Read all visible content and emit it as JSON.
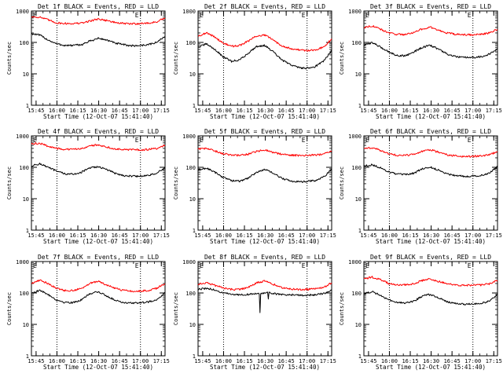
{
  "colors": {
    "events": "#000000",
    "lld": "#ff0000",
    "axes": "#000000",
    "background": "#ffffff"
  },
  "common": {
    "xlabel": "Start Time (12-Oct-07 15:41:40)",
    "ylabel": "Counts/sec",
    "x_tick_labels": [
      "15:45",
      "16:00",
      "16:15",
      "16:30",
      "16:45",
      "17:00",
      "17:15"
    ],
    "y_tick_labels": [
      "1",
      "10",
      "100",
      "1000"
    ],
    "marker_letters": [
      "E",
      "E"
    ]
  },
  "chart_data": [
    {
      "type": "line",
      "title": "Det 1f BLACK = Events, RED = LLD",
      "x_unit": "minutes after 15:41:40",
      "xlim": [
        0,
        96
      ],
      "ylim": [
        1,
        1000
      ],
      "yscale": "log",
      "x_ticks": [
        3.33,
        18.33,
        33.33,
        48.33,
        63.33,
        78.33,
        93.33
      ],
      "marker_lines_x": [
        18.33,
        78.33
      ],
      "series": [
        {
          "name": "Events",
          "color": "#000000",
          "x": [
            0,
            6,
            12,
            18,
            24,
            30,
            36,
            42,
            48,
            54,
            60,
            66,
            72,
            78,
            84,
            90,
            96
          ],
          "y": [
            190,
            170,
            120,
            90,
            80,
            80,
            85,
            110,
            135,
            120,
            95,
            85,
            78,
            80,
            85,
            100,
            160
          ]
        },
        {
          "name": "LLD",
          "color": "#ff0000",
          "x": [
            0,
            6,
            12,
            18,
            24,
            30,
            36,
            42,
            48,
            54,
            60,
            66,
            72,
            78,
            84,
            90,
            96
          ],
          "y": [
            650,
            640,
            520,
            420,
            400,
            400,
            410,
            480,
            560,
            500,
            430,
            400,
            390,
            400,
            410,
            450,
            600
          ]
        }
      ]
    },
    {
      "type": "line",
      "title": "Det 2f BLACK = Events, RED = LLD",
      "x_unit": "minutes after 15:41:40",
      "xlim": [
        0,
        96
      ],
      "ylim": [
        1,
        1000
      ],
      "yscale": "log",
      "x_ticks": [
        3.33,
        18.33,
        33.33,
        48.33,
        63.33,
        78.33,
        93.33
      ],
      "marker_lines_x": [
        18.33,
        78.33
      ],
      "series": [
        {
          "name": "Events",
          "color": "#000000",
          "x": [
            0,
            6,
            12,
            18,
            24,
            30,
            36,
            42,
            48,
            54,
            60,
            66,
            72,
            78,
            84,
            90,
            96
          ],
          "y": [
            70,
            90,
            60,
            35,
            25,
            28,
            45,
            75,
            80,
            50,
            28,
            20,
            16,
            15,
            17,
            25,
            55
          ]
        },
        {
          "name": "LLD",
          "color": "#ff0000",
          "x": [
            0,
            6,
            12,
            18,
            24,
            30,
            36,
            42,
            48,
            54,
            60,
            66,
            72,
            78,
            84,
            90,
            96
          ],
          "y": [
            160,
            200,
            150,
            95,
            75,
            80,
            110,
            160,
            170,
            120,
            80,
            65,
            58,
            55,
            58,
            70,
            130
          ]
        }
      ]
    },
    {
      "type": "line",
      "title": "Det 3f BLACK = Events, RED = LLD",
      "x_unit": "minutes after 15:41:40",
      "xlim": [
        0,
        96
      ],
      "ylim": [
        1,
        1000
      ],
      "yscale": "log",
      "x_ticks": [
        3.33,
        18.33,
        33.33,
        48.33,
        63.33,
        78.33,
        93.33
      ],
      "marker_lines_x": [
        18.33,
        78.33
      ],
      "series": [
        {
          "name": "Events",
          "color": "#000000",
          "x": [
            0,
            6,
            12,
            18,
            24,
            30,
            36,
            42,
            48,
            54,
            60,
            66,
            72,
            78,
            84,
            90,
            96
          ],
          "y": [
            80,
            100,
            70,
            50,
            38,
            38,
            50,
            70,
            80,
            60,
            42,
            35,
            33,
            33,
            35,
            42,
            60
          ]
        },
        {
          "name": "LLD",
          "color": "#ff0000",
          "x": [
            0,
            6,
            12,
            18,
            24,
            30,
            36,
            42,
            48,
            54,
            60,
            66,
            72,
            78,
            84,
            90,
            96
          ],
          "y": [
            300,
            340,
            260,
            200,
            180,
            180,
            210,
            270,
            300,
            240,
            200,
            180,
            175,
            175,
            180,
            200,
            260
          ]
        }
      ]
    },
    {
      "type": "line",
      "title": "Det 4f BLACK = Events, RED = LLD",
      "x_unit": "minutes after 15:41:40",
      "xlim": [
        0,
        96
      ],
      "ylim": [
        1,
        1000
      ],
      "yscale": "log",
      "x_ticks": [
        3.33,
        18.33,
        33.33,
        48.33,
        63.33,
        78.33,
        93.33
      ],
      "marker_lines_x": [
        18.33,
        78.33
      ],
      "series": [
        {
          "name": "Events",
          "color": "#000000",
          "x": [
            0,
            6,
            12,
            18,
            24,
            30,
            36,
            42,
            48,
            54,
            60,
            66,
            72,
            78,
            84,
            90,
            96
          ],
          "y": [
            110,
            130,
            100,
            75,
            62,
            60,
            70,
            95,
            105,
            85,
            65,
            55,
            52,
            52,
            55,
            65,
            95
          ]
        },
        {
          "name": "LLD",
          "color": "#ff0000",
          "x": [
            0,
            6,
            12,
            18,
            24,
            30,
            36,
            42,
            48,
            54,
            60,
            66,
            72,
            78,
            84,
            90,
            96
          ],
          "y": [
            550,
            580,
            470,
            400,
            370,
            370,
            400,
            480,
            520,
            440,
            390,
            370,
            360,
            360,
            370,
            400,
            500
          ]
        }
      ]
    },
    {
      "type": "line",
      "title": "Det 5f BLACK = Events, RED = LLD",
      "x_unit": "minutes after 15:41:40",
      "xlim": [
        0,
        96
      ],
      "ylim": [
        1,
        1000
      ],
      "yscale": "log",
      "x_ticks": [
        3.33,
        18.33,
        33.33,
        48.33,
        63.33,
        78.33,
        93.33
      ],
      "marker_lines_x": [
        18.33,
        78.33
      ],
      "series": [
        {
          "name": "Events",
          "color": "#000000",
          "x": [
            0,
            6,
            12,
            18,
            24,
            30,
            36,
            42,
            48,
            54,
            60,
            66,
            72,
            78,
            84,
            90,
            96
          ],
          "y": [
            80,
            95,
            70,
            48,
            38,
            36,
            45,
            70,
            85,
            65,
            45,
            37,
            35,
            35,
            38,
            48,
            85
          ]
        },
        {
          "name": "LLD",
          "color": "#ff0000",
          "x": [
            0,
            6,
            12,
            18,
            24,
            30,
            36,
            42,
            48,
            54,
            60,
            66,
            72,
            78,
            84,
            90,
            96
          ],
          "y": [
            380,
            400,
            330,
            270,
            245,
            240,
            260,
            320,
            360,
            300,
            260,
            245,
            240,
            240,
            245,
            265,
            330
          ]
        }
      ]
    },
    {
      "type": "line",
      "title": "Det 6f BLACK = Events, RED = LLD",
      "x_unit": "minutes after 15:41:40",
      "xlim": [
        0,
        96
      ],
      "ylim": [
        1,
        1000
      ],
      "yscale": "log",
      "x_ticks": [
        3.33,
        18.33,
        33.33,
        48.33,
        63.33,
        78.33,
        93.33
      ],
      "marker_lines_x": [
        18.33,
        78.33
      ],
      "series": [
        {
          "name": "Events",
          "color": "#000000",
          "x": [
            0,
            6,
            12,
            18,
            24,
            30,
            36,
            42,
            48,
            54,
            60,
            66,
            72,
            78,
            84,
            90,
            96
          ],
          "y": [
            110,
            120,
            95,
            72,
            60,
            58,
            65,
            90,
            100,
            80,
            62,
            55,
            52,
            52,
            55,
            65,
            105
          ]
        },
        {
          "name": "LLD",
          "color": "#ff0000",
          "x": [
            0,
            6,
            12,
            18,
            24,
            30,
            36,
            42,
            48,
            54,
            60,
            66,
            72,
            78,
            84,
            90,
            96
          ],
          "y": [
            400,
            420,
            340,
            270,
            240,
            240,
            260,
            320,
            360,
            300,
            250,
            230,
            220,
            220,
            230,
            250,
            320
          ]
        }
      ]
    },
    {
      "type": "line",
      "title": "Det 7f BLACK = Events, RED = LLD",
      "x_unit": "minutes after 15:41:40",
      "xlim": [
        0,
        96
      ],
      "ylim": [
        1,
        1000
      ],
      "yscale": "log",
      "x_ticks": [
        3.33,
        18.33,
        33.33,
        48.33,
        63.33,
        78.33,
        93.33
      ],
      "marker_lines_x": [
        18.33,
        78.33
      ],
      "series": [
        {
          "name": "Events",
          "color": "#000000",
          "x": [
            0,
            6,
            12,
            18,
            24,
            30,
            36,
            42,
            48,
            54,
            60,
            66,
            72,
            78,
            84,
            90,
            96
          ],
          "y": [
            100,
            120,
            90,
            60,
            50,
            50,
            60,
            95,
            110,
            80,
            60,
            50,
            48,
            48,
            52,
            62,
            100
          ]
        },
        {
          "name": "LLD",
          "color": "#ff0000",
          "x": [
            0,
            6,
            12,
            18,
            24,
            30,
            36,
            42,
            48,
            54,
            60,
            66,
            72,
            78,
            84,
            90,
            96
          ],
          "y": [
            200,
            260,
            200,
            140,
            120,
            120,
            140,
            200,
            240,
            180,
            140,
            120,
            115,
            115,
            120,
            140,
            200
          ]
        }
      ]
    },
    {
      "type": "line",
      "title": "Det 8f BLACK = Events, RED = LLD",
      "x_unit": "minutes after 15:41:40",
      "xlim": [
        0,
        96
      ],
      "ylim": [
        1,
        1000
      ],
      "yscale": "log",
      "x_ticks": [
        3.33,
        18.33,
        33.33,
        48.33,
        63.33,
        78.33,
        93.33
      ],
      "marker_lines_x": [
        18.33,
        78.33
      ],
      "series": [
        {
          "name": "Events",
          "color": "#000000",
          "x": [
            0,
            6,
            12,
            18,
            24,
            30,
            36,
            42,
            44,
            44.5,
            45,
            48,
            50,
            50.5,
            51,
            54,
            60,
            66,
            72,
            78,
            84,
            90,
            96
          ],
          "y": [
            130,
            140,
            125,
            100,
            90,
            88,
            90,
            95,
            95,
            25,
            95,
            100,
            100,
            60,
            100,
            95,
            90,
            88,
            85,
            85,
            88,
            95,
            120
          ]
        },
        {
          "name": "LLD",
          "color": "#ff0000",
          "x": [
            0,
            6,
            12,
            18,
            24,
            30,
            36,
            42,
            48,
            54,
            60,
            66,
            72,
            78,
            84,
            90,
            96
          ],
          "y": [
            190,
            210,
            175,
            145,
            130,
            130,
            150,
            210,
            240,
            190,
            150,
            135,
            130,
            130,
            135,
            150,
            210
          ]
        }
      ]
    },
    {
      "type": "line",
      "title": "Det 9f BLACK = Events, RED = LLD",
      "x_unit": "minutes after 15:41:40",
      "xlim": [
        0,
        96
      ],
      "ylim": [
        1,
        1000
      ],
      "yscale": "log",
      "x_ticks": [
        3.33,
        18.33,
        33.33,
        48.33,
        63.33,
        78.33,
        93.33
      ],
      "marker_lines_x": [
        18.33,
        78.33
      ],
      "series": [
        {
          "name": "Events",
          "color": "#000000",
          "x": [
            0,
            6,
            12,
            18,
            24,
            30,
            36,
            42,
            48,
            54,
            60,
            66,
            72,
            78,
            84,
            90,
            96
          ],
          "y": [
            95,
            110,
            85,
            60,
            50,
            48,
            55,
            80,
            90,
            70,
            52,
            46,
            44,
            44,
            46,
            55,
            90
          ]
        },
        {
          "name": "LLD",
          "color": "#ff0000",
          "x": [
            0,
            6,
            12,
            18,
            24,
            30,
            36,
            42,
            48,
            54,
            60,
            66,
            72,
            78,
            84,
            90,
            96
          ],
          "y": [
            280,
            320,
            260,
            200,
            180,
            180,
            200,
            250,
            280,
            230,
            195,
            180,
            175,
            175,
            180,
            195,
            250
          ]
        }
      ]
    }
  ]
}
